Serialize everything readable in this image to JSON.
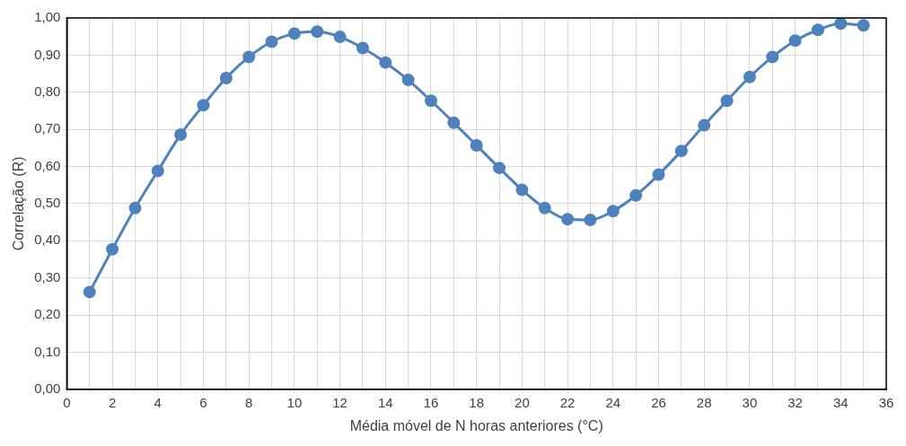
{
  "chart_data": {
    "type": "line",
    "xlabel": "Média móvel de N horas anteriores (°C)",
    "ylabel": "Correlação (R)",
    "x": [
      1,
      2,
      3,
      4,
      5,
      6,
      7,
      8,
      9,
      10,
      11,
      12,
      13,
      14,
      15,
      16,
      17,
      18,
      19,
      20,
      21,
      22,
      23,
      24,
      25,
      26,
      27,
      28,
      29,
      30,
      31,
      32,
      33,
      34,
      35
    ],
    "series": [
      {
        "color": "#4f81bd",
        "values": [
          0.262,
          0.377,
          0.488,
          0.588,
          0.686,
          0.765,
          0.838,
          0.895,
          0.936,
          0.958,
          0.963,
          0.949,
          0.919,
          0.88,
          0.833,
          0.777,
          0.718,
          0.657,
          0.596,
          0.537,
          0.488,
          0.458,
          0.456,
          0.48,
          0.522,
          0.578,
          0.642,
          0.711,
          0.777,
          0.841,
          0.895,
          0.939,
          0.968,
          0.985,
          0.98
        ]
      }
    ],
    "xlim": [
      0,
      36
    ],
    "xticks": [
      0,
      {
        "value": 1,
        "label": null
      },
      2,
      {
        "value": 3,
        "label": null
      },
      4,
      {
        "value": 5,
        "label": null
      },
      6,
      {
        "value": 7,
        "label": null
      },
      8,
      {
        "value": 9,
        "label": null
      },
      10,
      {
        "value": 11,
        "label": null
      },
      12,
      {
        "value": 13,
        "label": null
      },
      14,
      {
        "value": 15,
        "label": null
      },
      16,
      {
        "value": 17,
        "label": null
      },
      18,
      {
        "value": 19,
        "label": null
      },
      20,
      {
        "value": 21,
        "label": null
      },
      22,
      {
        "value": 23,
        "label": null
      },
      24,
      {
        "value": 25,
        "label": null
      },
      26,
      {
        "value": 27,
        "label": null
      },
      28,
      {
        "value": 29,
        "label": null
      },
      30,
      {
        "value": 31,
        "label": null
      },
      32,
      {
        "value": 33,
        "label": null
      },
      34,
      {
        "value": 35,
        "label": null
      },
      36
    ],
    "ylim": [
      0,
      1
    ],
    "yticks": [
      {
        "value": 0,
        "label": "0,00"
      },
      {
        "value": 0.1,
        "label": "0,10"
      },
      {
        "value": 0.2,
        "label": "0,20"
      },
      {
        "value": 0.3,
        "label": "0,30"
      },
      {
        "value": 0.4,
        "label": "0,40"
      },
      {
        "value": 0.5,
        "label": "0,50"
      },
      {
        "value": 0.6,
        "label": "0,60"
      },
      {
        "value": 0.7,
        "label": "0,70"
      },
      {
        "value": 0.8,
        "label": "0,80"
      },
      {
        "value": 0.9,
        "label": "0,90"
      },
      {
        "value": 1,
        "label": "1,00"
      }
    ],
    "grid": true,
    "legend": false,
    "marker": "circle",
    "line_style": "solid"
  }
}
